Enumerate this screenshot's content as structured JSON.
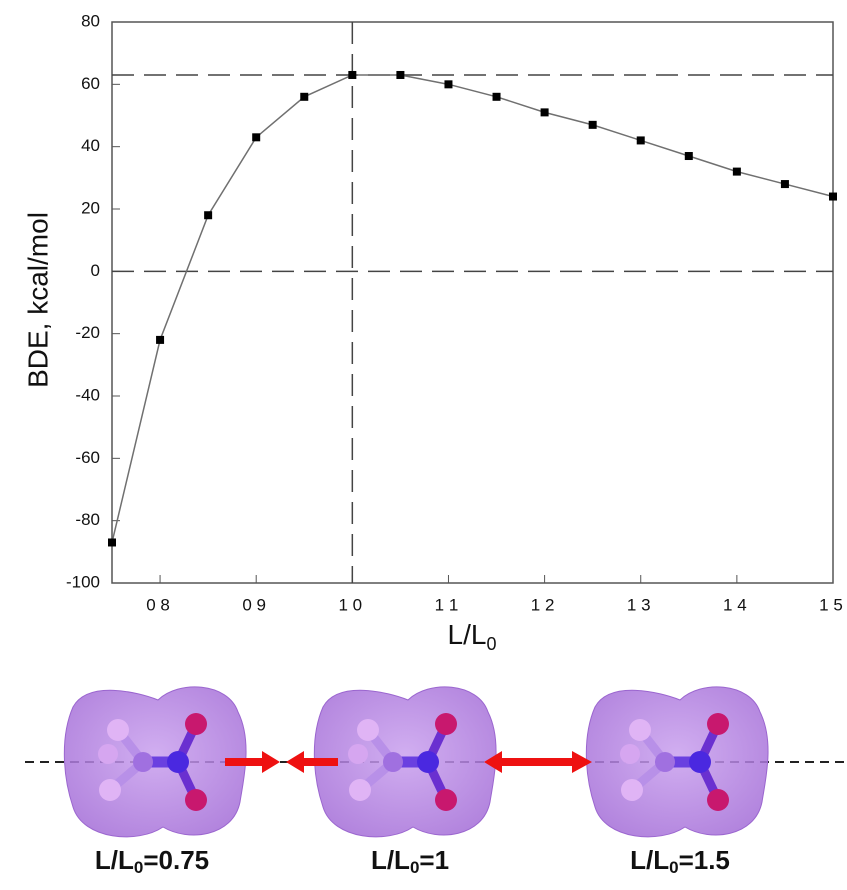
{
  "chart_data": {
    "type": "line",
    "ylabel": "BDE, kcal/mol",
    "xlabel": [
      "L/L",
      "0"
    ],
    "x": [
      0.75,
      0.8,
      0.85,
      0.9,
      0.95,
      1.0,
      1.05,
      1.1,
      1.15,
      1.2,
      1.25,
      1.3,
      1.35,
      1.4,
      1.45,
      1.5
    ],
    "series": [
      {
        "color": "#000000",
        "line_color": "#707070",
        "values": [
          -87,
          -22,
          18,
          43,
          56,
          63,
          63,
          60,
          56,
          51,
          47,
          42,
          37,
          32,
          28,
          24
        ]
      }
    ],
    "xlim": [
      0.75,
      1.5
    ],
    "xticks": [
      {
        "value": 0.8,
        "label": "0 8"
      },
      {
        "value": 0.9,
        "label": "0 9"
      },
      {
        "value": 1.0,
        "label": "1 0"
      },
      {
        "value": 1.1,
        "label": "1 1"
      },
      {
        "value": 1.2,
        "label": "1 2"
      },
      {
        "value": 1.3,
        "label": "1 3"
      },
      {
        "value": 1.4,
        "label": "1 4"
      },
      {
        "value": 1.5,
        "label": "1 5"
      }
    ],
    "ylim": [
      -100,
      80
    ],
    "yticks": [
      -100,
      -80,
      -60,
      -40,
      -20,
      0,
      20,
      40,
      60,
      80
    ],
    "hlines": [
      63,
      0
    ],
    "vlines": [
      1.0
    ]
  },
  "illustration": {
    "captions": [
      [
        "L/L",
        "0",
        "=0.75"
      ],
      [
        "L/L",
        "0",
        "=1"
      ],
      [
        "L/L",
        "0",
        "=1.5"
      ]
    ]
  }
}
